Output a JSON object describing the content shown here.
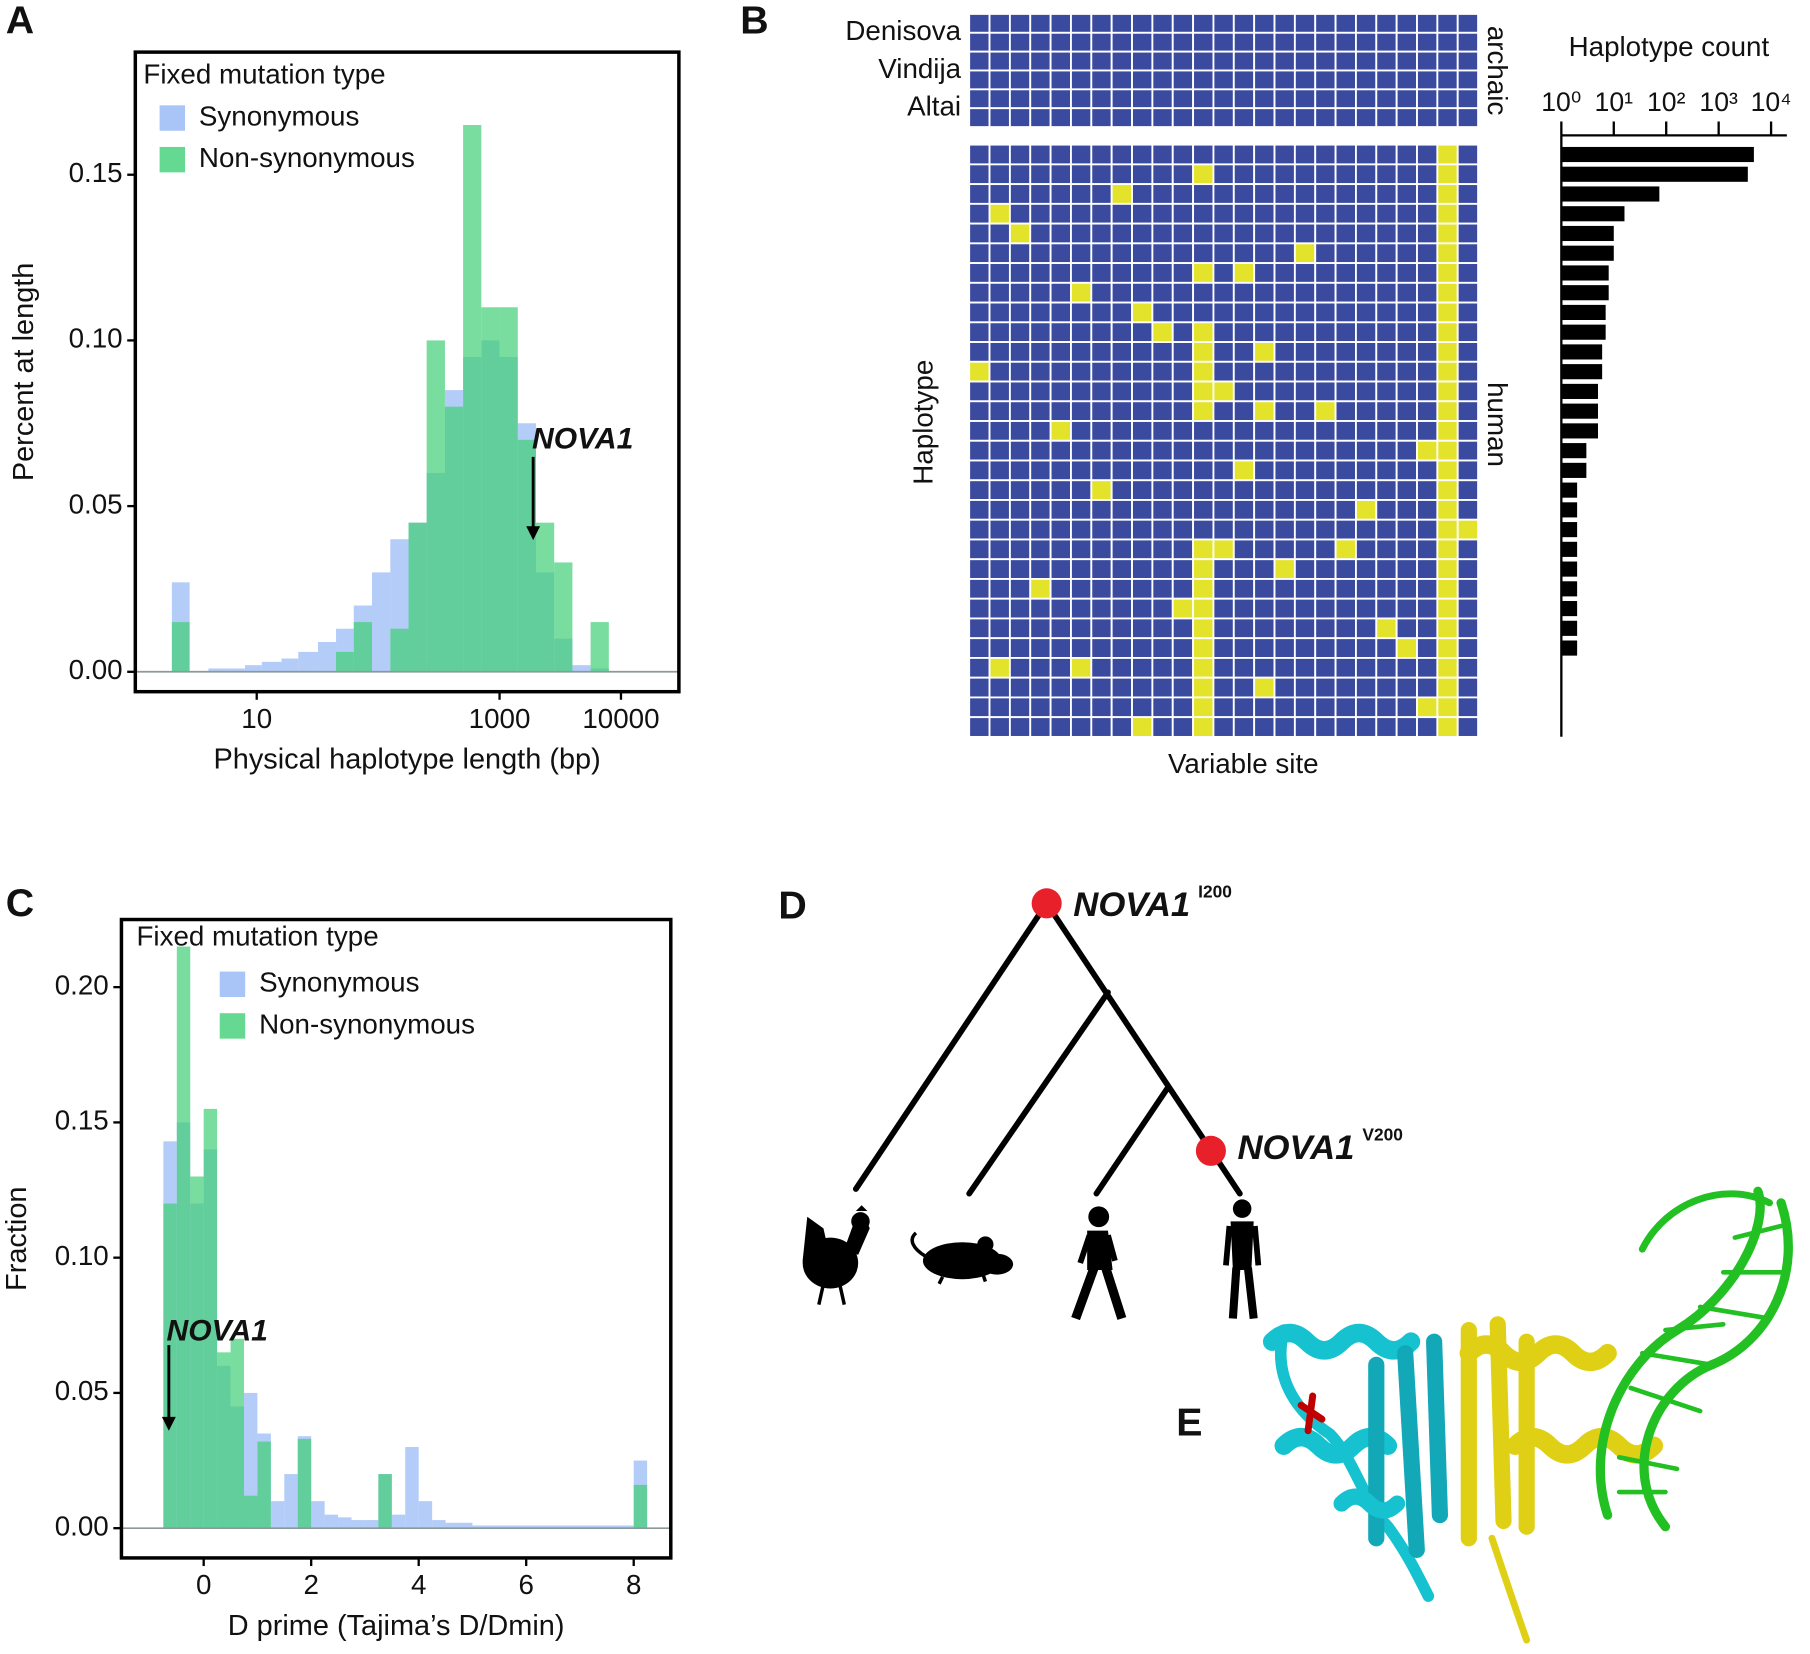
{
  "chart_data": [
    {
      "panel": "A",
      "type": "histogram",
      "xscale": "log",
      "legend_title": "Fixed mutation type",
      "x_label": "Physical haplotype length (bp)",
      "y_label": "Percent at length",
      "annotation": "NOVA1",
      "bins": [
        2,
        2.8,
        4,
        5.6,
        8,
        11,
        16,
        22,
        32,
        45,
        63,
        89,
        126,
        178,
        251,
        355,
        501,
        708,
        1000,
        1413,
        1995,
        2818,
        3981,
        5623,
        7943,
        11220
      ],
      "series": [
        {
          "name": "Synonymous",
          "color": "#93b6f5",
          "values": [
            0.027,
            0,
            0.001,
            0.001,
            0.002,
            0.003,
            0.004,
            0.006,
            0.009,
            0.013,
            0.02,
            0.03,
            0.04,
            0.045,
            0.06,
            0.085,
            0.095,
            0.1,
            0.095,
            0.075,
            0.03,
            0.01,
            0.002,
            0.001,
            0
          ]
        },
        {
          "name": "Non-synonymous",
          "color": "#3fcf75",
          "values": [
            0.015,
            0,
            0,
            0,
            0,
            0,
            0,
            0,
            0,
            0.006,
            0.015,
            0,
            0.013,
            0.045,
            0.1,
            0.08,
            0.165,
            0.11,
            0.11,
            0.07,
            0.045,
            0.033,
            0,
            0.015,
            0
          ]
        }
      ],
      "xlim": [
        1,
        30000
      ],
      "xticks": [
        10,
        1000,
        10000
      ],
      "ylim": [
        -0.006,
        0.187
      ],
      "yticks": [
        {
          "value": 0,
          "label": "0.00"
        },
        {
          "value": 0.05,
          "label": "0.05"
        },
        {
          "value": 0.1,
          "label": "0.10"
        },
        {
          "value": 0.15,
          "label": "0.15"
        }
      ]
    },
    {
      "panel": "B",
      "type": "heatmap",
      "row_labels": [
        "Denisova",
        "Vindija",
        "Altai"
      ],
      "group_labels": [
        "archaic",
        "human"
      ],
      "y_label": "Haplotype",
      "x_label": "Variable site",
      "colors": [
        "#3a4a9f",
        "#e3e32c"
      ],
      "rows_archaic": [
        [
          0,
          0,
          0,
          0,
          0,
          0,
          0,
          0,
          0,
          0,
          0,
          0,
          0,
          0,
          0,
          0,
          0,
          0,
          0,
          0,
          0,
          0,
          0,
          0,
          0
        ],
        [
          0,
          0,
          0,
          0,
          0,
          0,
          0,
          0,
          0,
          0,
          0,
          0,
          0,
          0,
          0,
          0,
          0,
          0,
          0,
          0,
          0,
          0,
          0,
          0,
          0
        ],
        [
          0,
          0,
          0,
          0,
          0,
          0,
          0,
          0,
          0,
          0,
          0,
          0,
          0,
          0,
          0,
          0,
          0,
          0,
          0,
          0,
          0,
          0,
          0,
          0,
          0
        ],
        [
          0,
          0,
          0,
          0,
          0,
          0,
          0,
          0,
          0,
          0,
          0,
          0,
          0,
          0,
          0,
          0,
          0,
          0,
          0,
          0,
          0,
          0,
          0,
          0,
          0
        ],
        [
          0,
          0,
          0,
          0,
          0,
          0,
          0,
          0,
          0,
          0,
          0,
          0,
          0,
          0,
          0,
          0,
          0,
          0,
          0,
          0,
          0,
          0,
          0,
          0,
          0
        ],
        [
          0,
          0,
          0,
          0,
          0,
          0,
          0,
          0,
          0,
          0,
          0,
          0,
          0,
          0,
          0,
          0,
          0,
          0,
          0,
          0,
          0,
          0,
          0,
          0,
          0
        ]
      ],
      "rows_human": [
        [
          0,
          0,
          0,
          0,
          0,
          0,
          0,
          0,
          0,
          0,
          0,
          0,
          0,
          0,
          0,
          0,
          0,
          0,
          0,
          0,
          0,
          0,
          0,
          1,
          0
        ],
        [
          0,
          0,
          0,
          0,
          0,
          0,
          0,
          0,
          0,
          0,
          0,
          1,
          0,
          0,
          0,
          0,
          0,
          0,
          0,
          0,
          0,
          0,
          0,
          1,
          0
        ],
        [
          0,
          0,
          0,
          0,
          0,
          0,
          0,
          1,
          0,
          0,
          0,
          0,
          0,
          0,
          0,
          0,
          0,
          0,
          0,
          0,
          0,
          0,
          0,
          1,
          0
        ],
        [
          0,
          1,
          0,
          0,
          0,
          0,
          0,
          0,
          0,
          0,
          0,
          0,
          0,
          0,
          0,
          0,
          0,
          0,
          0,
          0,
          0,
          0,
          0,
          1,
          0
        ],
        [
          0,
          0,
          1,
          0,
          0,
          0,
          0,
          0,
          0,
          0,
          0,
          0,
          0,
          0,
          0,
          0,
          0,
          0,
          0,
          0,
          0,
          0,
          0,
          1,
          0
        ],
        [
          0,
          0,
          0,
          0,
          0,
          0,
          0,
          0,
          0,
          0,
          0,
          0,
          0,
          0,
          0,
          0,
          1,
          0,
          0,
          0,
          0,
          0,
          0,
          1,
          0
        ],
        [
          0,
          0,
          0,
          0,
          0,
          0,
          0,
          0,
          0,
          0,
          0,
          1,
          0,
          1,
          0,
          0,
          0,
          0,
          0,
          0,
          0,
          0,
          0,
          1,
          0
        ],
        [
          0,
          0,
          0,
          0,
          0,
          1,
          0,
          0,
          0,
          0,
          0,
          0,
          0,
          0,
          0,
          0,
          0,
          0,
          0,
          0,
          0,
          0,
          0,
          1,
          0
        ],
        [
          0,
          0,
          0,
          0,
          0,
          0,
          0,
          0,
          1,
          0,
          0,
          0,
          0,
          0,
          0,
          0,
          0,
          0,
          0,
          0,
          0,
          0,
          0,
          1,
          0
        ],
        [
          0,
          0,
          0,
          0,
          0,
          0,
          0,
          0,
          0,
          1,
          0,
          1,
          0,
          0,
          0,
          0,
          0,
          0,
          0,
          0,
          0,
          0,
          0,
          1,
          0
        ],
        [
          0,
          0,
          0,
          0,
          0,
          0,
          0,
          0,
          0,
          0,
          0,
          1,
          0,
          0,
          1,
          0,
          0,
          0,
          0,
          0,
          0,
          0,
          0,
          1,
          0
        ],
        [
          1,
          0,
          0,
          0,
          0,
          0,
          0,
          0,
          0,
          0,
          0,
          1,
          0,
          0,
          0,
          0,
          0,
          0,
          0,
          0,
          0,
          0,
          0,
          1,
          0
        ],
        [
          0,
          0,
          0,
          0,
          0,
          0,
          0,
          0,
          0,
          0,
          0,
          1,
          1,
          0,
          0,
          0,
          0,
          0,
          0,
          0,
          0,
          0,
          0,
          1,
          0
        ],
        [
          0,
          0,
          0,
          0,
          0,
          0,
          0,
          0,
          0,
          0,
          0,
          1,
          0,
          0,
          1,
          0,
          0,
          1,
          0,
          0,
          0,
          0,
          0,
          1,
          0
        ],
        [
          0,
          0,
          0,
          0,
          1,
          0,
          0,
          0,
          0,
          0,
          0,
          0,
          0,
          0,
          0,
          0,
          0,
          0,
          0,
          0,
          0,
          0,
          0,
          1,
          0
        ],
        [
          0,
          0,
          0,
          0,
          0,
          0,
          0,
          0,
          0,
          0,
          0,
          0,
          0,
          0,
          0,
          0,
          0,
          0,
          0,
          0,
          0,
          0,
          1,
          1,
          0
        ],
        [
          0,
          0,
          0,
          0,
          0,
          0,
          0,
          0,
          0,
          0,
          0,
          0,
          0,
          1,
          0,
          0,
          0,
          0,
          0,
          0,
          0,
          0,
          0,
          1,
          0
        ],
        [
          0,
          0,
          0,
          0,
          0,
          0,
          1,
          0,
          0,
          0,
          0,
          0,
          0,
          0,
          0,
          0,
          0,
          0,
          0,
          0,
          0,
          0,
          0,
          1,
          0
        ],
        [
          0,
          0,
          0,
          0,
          0,
          0,
          0,
          0,
          0,
          0,
          0,
          0,
          0,
          0,
          0,
          0,
          0,
          0,
          0,
          1,
          0,
          0,
          0,
          1,
          0
        ],
        [
          0,
          0,
          0,
          0,
          0,
          0,
          0,
          0,
          0,
          0,
          0,
          0,
          0,
          0,
          0,
          0,
          0,
          0,
          0,
          0,
          0,
          0,
          0,
          1,
          1
        ],
        [
          0,
          0,
          0,
          0,
          0,
          0,
          0,
          0,
          0,
          0,
          0,
          1,
          1,
          0,
          0,
          0,
          0,
          0,
          1,
          0,
          0,
          0,
          0,
          1,
          0
        ],
        [
          0,
          0,
          0,
          0,
          0,
          0,
          0,
          0,
          0,
          0,
          0,
          1,
          0,
          0,
          0,
          1,
          0,
          0,
          0,
          0,
          0,
          0,
          0,
          1,
          0
        ],
        [
          0,
          0,
          0,
          1,
          0,
          0,
          0,
          0,
          0,
          0,
          0,
          1,
          0,
          0,
          0,
          0,
          0,
          0,
          0,
          0,
          0,
          0,
          0,
          1,
          0
        ],
        [
          0,
          0,
          0,
          0,
          0,
          0,
          0,
          0,
          0,
          0,
          1,
          1,
          0,
          0,
          0,
          0,
          0,
          0,
          0,
          0,
          0,
          0,
          0,
          1,
          0
        ],
        [
          0,
          0,
          0,
          0,
          0,
          0,
          0,
          0,
          0,
          0,
          0,
          1,
          0,
          0,
          0,
          0,
          0,
          0,
          0,
          0,
          1,
          0,
          0,
          1,
          0
        ],
        [
          0,
          0,
          0,
          0,
          0,
          0,
          0,
          0,
          0,
          0,
          0,
          1,
          0,
          0,
          0,
          0,
          0,
          0,
          0,
          0,
          0,
          1,
          0,
          1,
          0
        ],
        [
          0,
          1,
          0,
          0,
          0,
          1,
          0,
          0,
          0,
          0,
          0,
          1,
          0,
          0,
          0,
          0,
          0,
          0,
          0,
          0,
          0,
          0,
          0,
          1,
          0
        ],
        [
          0,
          0,
          0,
          0,
          0,
          0,
          0,
          0,
          0,
          0,
          0,
          1,
          0,
          0,
          1,
          0,
          0,
          0,
          0,
          0,
          0,
          0,
          0,
          1,
          0
        ],
        [
          0,
          0,
          0,
          0,
          0,
          0,
          0,
          0,
          0,
          0,
          0,
          1,
          0,
          0,
          0,
          0,
          0,
          0,
          0,
          0,
          0,
          0,
          1,
          1,
          0
        ],
        [
          0,
          0,
          0,
          0,
          0,
          0,
          0,
          0,
          1,
          0,
          0,
          1,
          0,
          0,
          0,
          0,
          0,
          0,
          0,
          0,
          0,
          0,
          0,
          1,
          0
        ]
      ]
    },
    {
      "type": "bar",
      "orientation": "horizontal",
      "title": "Haplotype count",
      "xscale": "log",
      "color": "#000000",
      "values": [
        4700,
        3600,
        74,
        16,
        10,
        10,
        8,
        8,
        7,
        7,
        6,
        6,
        5,
        5,
        5,
        3,
        3,
        2,
        2,
        2,
        2,
        2,
        2,
        2,
        2,
        2,
        1,
        1,
        1,
        1
      ],
      "xlim": [
        1,
        20000
      ],
      "xticks": [
        {
          "value": 1,
          "label": "10⁰"
        },
        {
          "value": 10,
          "label": "10¹"
        },
        {
          "value": 100,
          "label": "10²"
        },
        {
          "value": 1000,
          "label": "10³"
        },
        {
          "value": 10000,
          "label": "10⁴"
        }
      ]
    },
    {
      "panel": "C",
      "type": "histogram",
      "xscale": "linear",
      "legend_title": "Fixed mutation type",
      "x_label": "D prime (Tajima’s D/Dmin)",
      "y_label": "Fraction",
      "annotation": "NOVA1",
      "bins": [
        -0.75,
        -0.5,
        -0.25,
        0,
        0.25,
        0.5,
        0.75,
        1,
        1.25,
        1.5,
        1.75,
        2,
        2.25,
        2.5,
        2.75,
        3,
        3.25,
        3.5,
        3.75,
        4,
        4.25,
        4.5,
        4.75,
        5,
        5.25,
        5.5,
        5.75,
        6,
        6.25,
        6.5,
        6.75,
        7,
        7.25,
        7.5,
        7.75,
        8,
        8.25
      ],
      "series": [
        {
          "name": "Synonymous",
          "color": "#93b6f5",
          "values": [
            0.143,
            0.15,
            0.12,
            0.14,
            0.06,
            0.045,
            0.05,
            0.035,
            0.01,
            0.02,
            0.034,
            0.01,
            0.005,
            0.004,
            0.003,
            0.003,
            0.02,
            0.005,
            0.03,
            0.01,
            0.003,
            0.002,
            0.002,
            0.001,
            0.001,
            0.001,
            0.001,
            0.001,
            0.001,
            0.001,
            0.001,
            0.001,
            0.001,
            0.001,
            0.001,
            0.025
          ]
        },
        {
          "name": "Non-synonymous",
          "color": "#3fcf75",
          "values": [
            0.12,
            0.215,
            0.13,
            0.155,
            0.065,
            0.07,
            0.012,
            0.032,
            0,
            0,
            0.033,
            0,
            0,
            0,
            0,
            0,
            0.02,
            0,
            0,
            0,
            0,
            0,
            0,
            0,
            0,
            0,
            0,
            0,
            0,
            0,
            0,
            0,
            0,
            0,
            0,
            0.016
          ]
        }
      ],
      "xlim": [
        -1.53,
        8.69
      ],
      "xticks": [
        0,
        2,
        4,
        6,
        8
      ],
      "ylim": [
        -0.011,
        0.225
      ],
      "yticks": [
        {
          "value": 0,
          "label": "0.00"
        },
        {
          "value": 0.05,
          "label": "0.05"
        },
        {
          "value": 0.1,
          "label": "0.10"
        },
        {
          "value": 0.15,
          "label": "0.15"
        },
        {
          "value": 0.2,
          "label": "0.20"
        }
      ]
    }
  ],
  "diagram": {
    "panel": "D",
    "nodes": [
      {
        "label": "NOVA1",
        "superscript": "I200"
      },
      {
        "label": "NOVA1",
        "superscript": "V200"
      }
    ]
  },
  "structure": {
    "panel": "E"
  }
}
